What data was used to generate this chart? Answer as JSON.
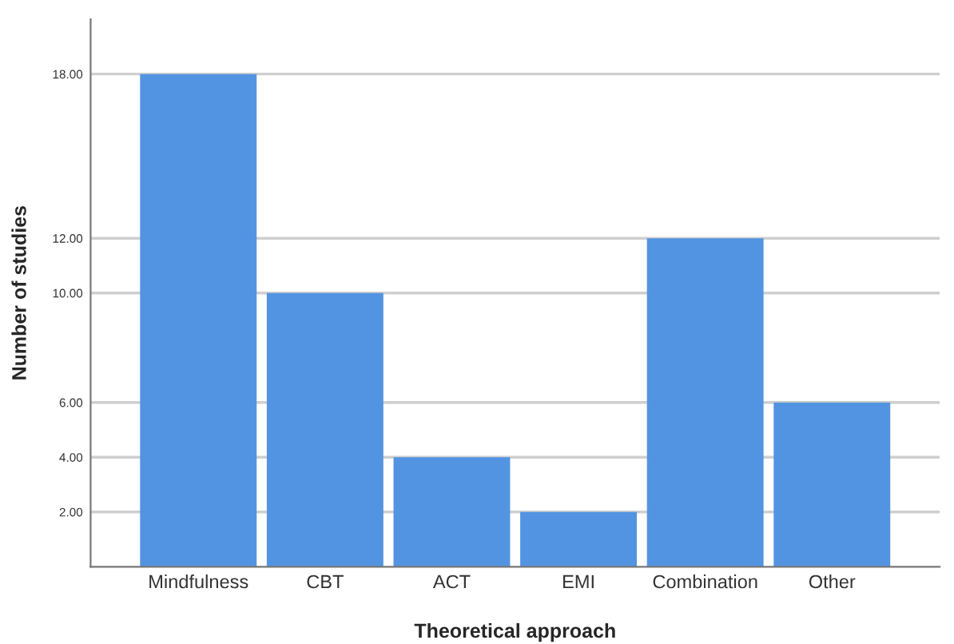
{
  "chart_data": {
    "type": "bar",
    "xlabel": "Theoretical approach",
    "ylabel": "Number of studies",
    "categories": [
      "Mindfulness",
      "CBT",
      "ACT",
      "EMI",
      "Combination",
      "Other"
    ],
    "values": [
      18,
      10,
      4,
      2,
      12,
      6
    ],
    "color": "#5294e2",
    "ylim": [
      0,
      20
    ],
    "yticks": [
      {
        "value": 2,
        "label": "2.00"
      },
      {
        "value": 4,
        "label": "4.00"
      },
      {
        "value": 6,
        "label": "6.00"
      },
      {
        "value": 10,
        "label": "10.00"
      },
      {
        "value": 12,
        "label": "12.00"
      },
      {
        "value": 18,
        "label": "18.00"
      }
    ],
    "grid": "y",
    "legend": false
  }
}
